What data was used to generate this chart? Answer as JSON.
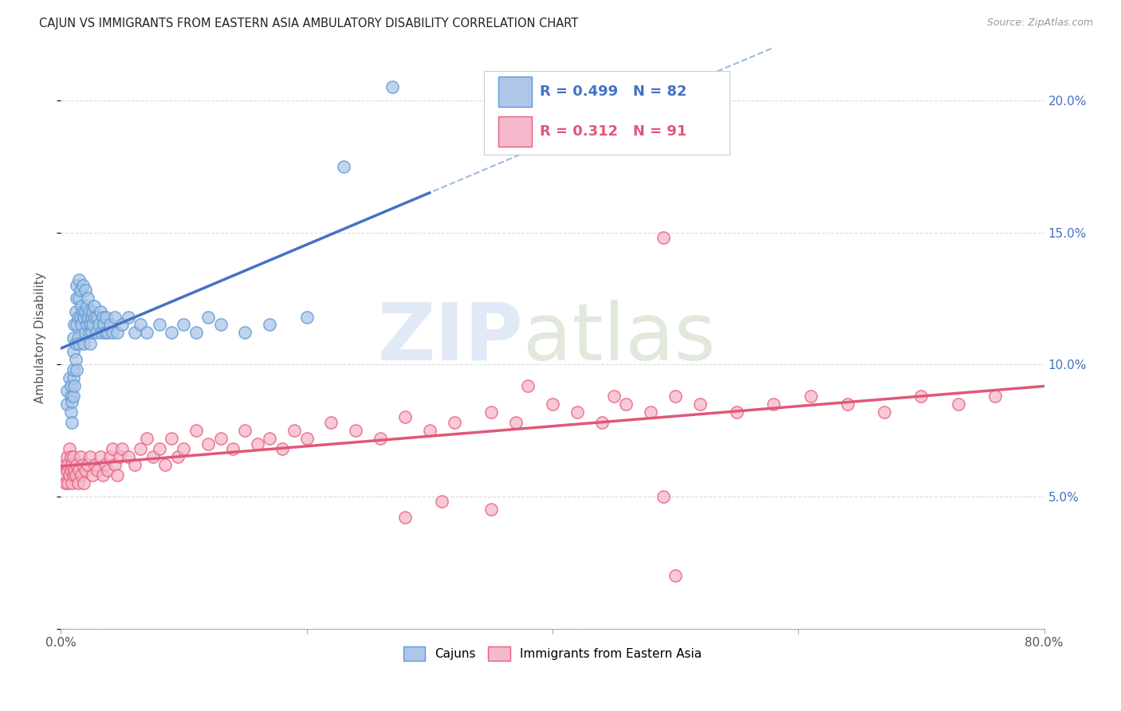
{
  "title": "CAJUN VS IMMIGRANTS FROM EASTERN ASIA AMBULATORY DISABILITY CORRELATION CHART",
  "source": "Source: ZipAtlas.com",
  "ylabel": "Ambulatory Disability",
  "xlim": [
    0.0,
    0.8
  ],
  "ylim": [
    0.0,
    0.22
  ],
  "xtick_values": [
    0.0,
    0.2,
    0.4,
    0.6,
    0.8
  ],
  "xtick_labels": [
    "0.0%",
    "",
    "",
    "",
    "80.0%"
  ],
  "ytick_values": [
    0.0,
    0.05,
    0.1,
    0.15,
    0.2
  ],
  "ytick_labels_right": [
    "",
    "5.0%",
    "10.0%",
    "15.0%",
    "20.0%"
  ],
  "cajun_color": "#aec6e8",
  "cajun_edge_color": "#5b9bd5",
  "eastern_asia_color": "#f5b8cc",
  "eastern_asia_edge_color": "#e8607a",
  "cajun_line_color": "#4472c4",
  "eastern_asia_line_color": "#e05878",
  "background_color": "#ffffff",
  "grid_color": "#cccccc",
  "watermark_zip_color": "#c8d8ee",
  "watermark_atlas_color": "#c8d8c8",
  "cajun_N": 82,
  "eastern_asia_N": 91,
  "cajun_R": 0.499,
  "eastern_asia_R": 0.312,
  "cajun_x": [
    0.005,
    0.005,
    0.007,
    0.008,
    0.008,
    0.008,
    0.009,
    0.009,
    0.01,
    0.01,
    0.01,
    0.01,
    0.01,
    0.011,
    0.011,
    0.012,
    0.012,
    0.012,
    0.013,
    0.013,
    0.013,
    0.013,
    0.014,
    0.014,
    0.015,
    0.015,
    0.015,
    0.016,
    0.016,
    0.017,
    0.017,
    0.018,
    0.018,
    0.019,
    0.019,
    0.02,
    0.02,
    0.02,
    0.021,
    0.021,
    0.022,
    0.022,
    0.023,
    0.023,
    0.024,
    0.024,
    0.025,
    0.025,
    0.026,
    0.026,
    0.027,
    0.028,
    0.029,
    0.03,
    0.031,
    0.032,
    0.033,
    0.034,
    0.035,
    0.036,
    0.037,
    0.038,
    0.04,
    0.042,
    0.044,
    0.046,
    0.05,
    0.055,
    0.06,
    0.065,
    0.07,
    0.08,
    0.09,
    0.1,
    0.11,
    0.12,
    0.13,
    0.15,
    0.17,
    0.2,
    0.23,
    0.27
  ],
  "cajun_y": [
    0.09,
    0.085,
    0.095,
    0.088,
    0.082,
    0.092,
    0.086,
    0.078,
    0.095,
    0.105,
    0.11,
    0.098,
    0.088,
    0.092,
    0.115,
    0.12,
    0.108,
    0.102,
    0.098,
    0.115,
    0.125,
    0.13,
    0.11,
    0.118,
    0.125,
    0.132,
    0.108,
    0.118,
    0.128,
    0.115,
    0.122,
    0.13,
    0.12,
    0.108,
    0.118,
    0.112,
    0.12,
    0.128,
    0.115,
    0.122,
    0.118,
    0.125,
    0.112,
    0.12,
    0.115,
    0.108,
    0.118,
    0.112,
    0.12,
    0.115,
    0.122,
    0.118,
    0.112,
    0.118,
    0.115,
    0.12,
    0.112,
    0.118,
    0.115,
    0.112,
    0.118,
    0.112,
    0.115,
    0.112,
    0.118,
    0.112,
    0.115,
    0.118,
    0.112,
    0.115,
    0.112,
    0.115,
    0.112,
    0.115,
    0.112,
    0.118,
    0.115,
    0.112,
    0.115,
    0.118,
    0.175,
    0.205
  ],
  "east_x": [
    0.003,
    0.004,
    0.004,
    0.005,
    0.005,
    0.006,
    0.006,
    0.007,
    0.007,
    0.008,
    0.008,
    0.009,
    0.009,
    0.01,
    0.01,
    0.011,
    0.012,
    0.013,
    0.014,
    0.015,
    0.016,
    0.017,
    0.018,
    0.019,
    0.02,
    0.022,
    0.024,
    0.026,
    0.028,
    0.03,
    0.032,
    0.034,
    0.036,
    0.038,
    0.04,
    0.042,
    0.044,
    0.046,
    0.048,
    0.05,
    0.055,
    0.06,
    0.065,
    0.07,
    0.075,
    0.08,
    0.085,
    0.09,
    0.095,
    0.1,
    0.11,
    0.12,
    0.13,
    0.14,
    0.15,
    0.16,
    0.17,
    0.18,
    0.19,
    0.2,
    0.22,
    0.24,
    0.26,
    0.28,
    0.3,
    0.32,
    0.35,
    0.37,
    0.4,
    0.42,
    0.44,
    0.46,
    0.48,
    0.5,
    0.52,
    0.55,
    0.58,
    0.61,
    0.64,
    0.67,
    0.7,
    0.73,
    0.76,
    0.49,
    0.38,
    0.45,
    0.35,
    0.31,
    0.28,
    0.5,
    0.49
  ],
  "east_y": [
    0.058,
    0.062,
    0.055,
    0.06,
    0.065,
    0.055,
    0.062,
    0.058,
    0.068,
    0.06,
    0.065,
    0.055,
    0.062,
    0.058,
    0.065,
    0.06,
    0.058,
    0.062,
    0.055,
    0.06,
    0.065,
    0.058,
    0.062,
    0.055,
    0.06,
    0.062,
    0.065,
    0.058,
    0.062,
    0.06,
    0.065,
    0.058,
    0.062,
    0.06,
    0.065,
    0.068,
    0.062,
    0.058,
    0.065,
    0.068,
    0.065,
    0.062,
    0.068,
    0.072,
    0.065,
    0.068,
    0.062,
    0.072,
    0.065,
    0.068,
    0.075,
    0.07,
    0.072,
    0.068,
    0.075,
    0.07,
    0.072,
    0.068,
    0.075,
    0.072,
    0.078,
    0.075,
    0.072,
    0.08,
    0.075,
    0.078,
    0.082,
    0.078,
    0.085,
    0.082,
    0.078,
    0.085,
    0.082,
    0.088,
    0.085,
    0.082,
    0.085,
    0.088,
    0.085,
    0.082,
    0.088,
    0.085,
    0.088,
    0.05,
    0.092,
    0.088,
    0.045,
    0.048,
    0.042,
    0.02,
    0.148
  ]
}
